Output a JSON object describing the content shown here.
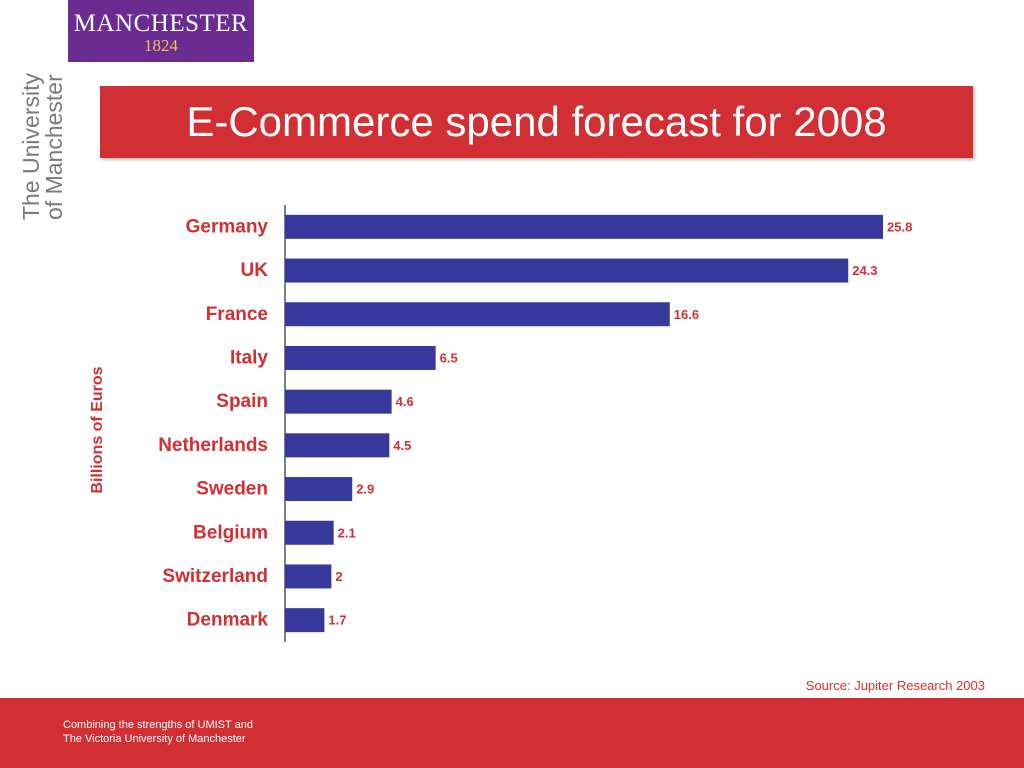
{
  "logo": {
    "word": "MANCHESTER",
    "year": "1824"
  },
  "university": {
    "line1": "The University",
    "line2": "of Manchester"
  },
  "title": "E-Commerce spend forecast for 2008",
  "source": "Source: Jupiter Research 2003",
  "footer": {
    "line1": "Combining the strengths of UMIST and",
    "line2": "The Victoria University of Manchester"
  },
  "colors": {
    "bar": "#36399b",
    "accent": "#d22f34",
    "logo_bg": "#6b2c91"
  },
  "chart_data": {
    "type": "bar",
    "orientation": "horizontal",
    "title": "E-Commerce spend forecast for 2008",
    "ylabel": "Billions of Euros",
    "xlabel": "",
    "categories": [
      "Germany",
      "UK",
      "France",
      "Italy",
      "Spain",
      "Netherlands",
      "Sweden",
      "Belgium",
      "Switzerland",
      "Denmark"
    ],
    "values": [
      25.8,
      24.3,
      16.6,
      6.5,
      4.6,
      4.5,
      2.9,
      2.1,
      2,
      1.7
    ],
    "value_labels": [
      "25.8",
      "24.3",
      "16.6",
      "6.5",
      "4.6",
      "4.5",
      "2.9",
      "2.1",
      "2",
      "1.7"
    ],
    "xlim": [
      0,
      25.8
    ],
    "grid": false,
    "legend": "none"
  }
}
